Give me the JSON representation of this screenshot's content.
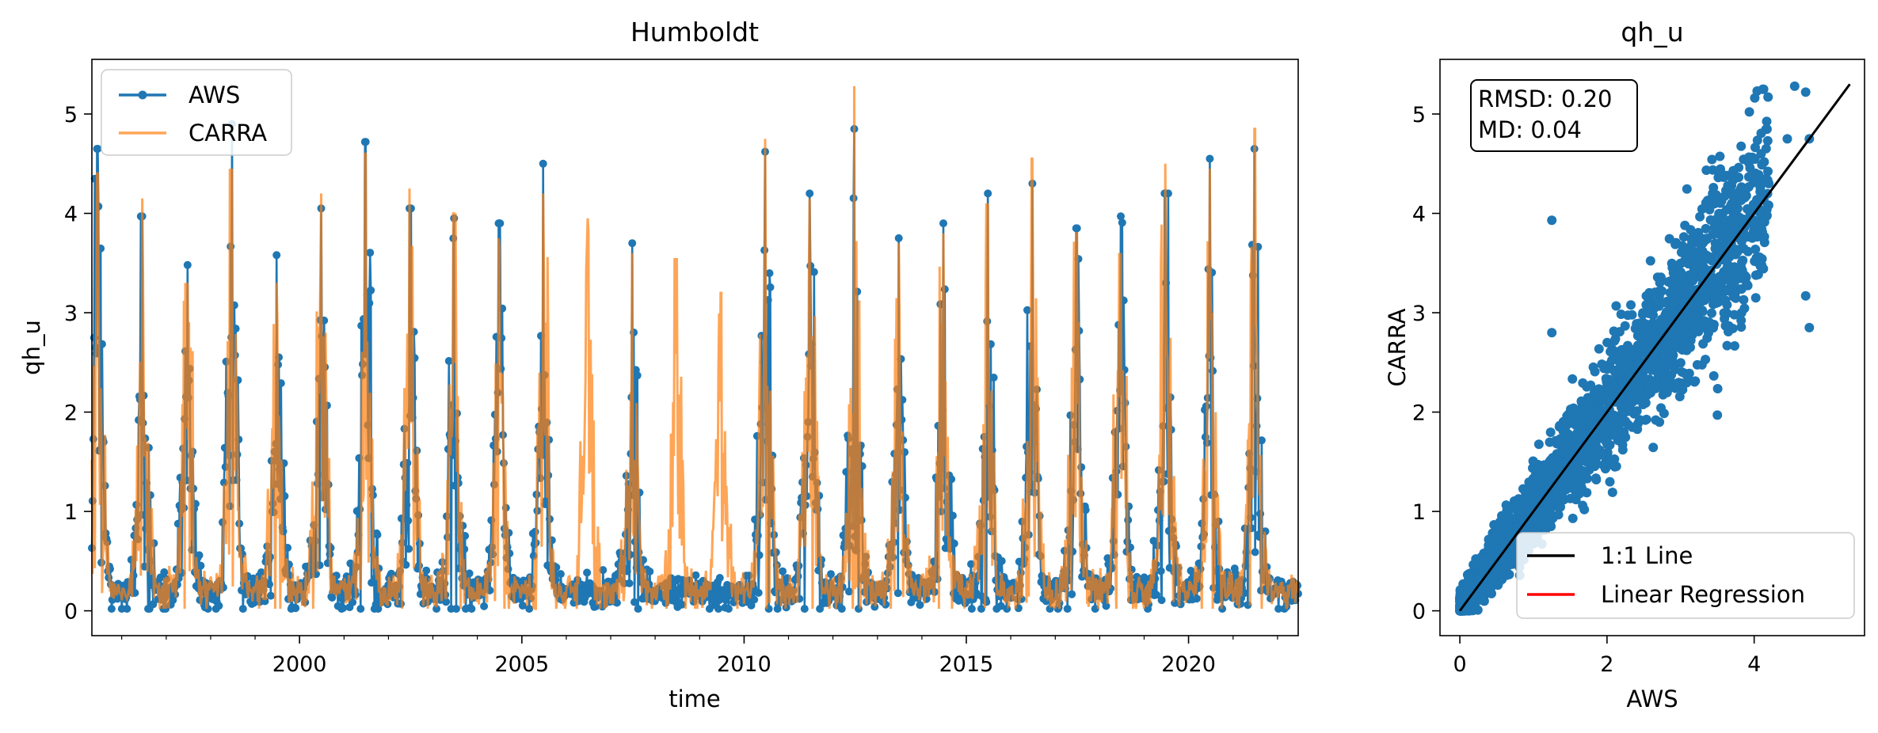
{
  "colors": {
    "aws": "#1f77b4",
    "carra": "#ff7f0e",
    "one_to_one": "#000000",
    "regression": "#ff0000"
  },
  "chart_data": [
    {
      "type": "line",
      "title": "Humboldt",
      "xlabel": "time",
      "ylabel": "qh_u",
      "x_type": "date",
      "xlim": [
        "1995-05-01",
        "2022-06-20"
      ],
      "ylim": [
        -0.25,
        5.55
      ],
      "xticks": [
        {
          "value": "2000-01-01",
          "label": "2000"
        },
        {
          "value": "2005-01-01",
          "label": "2005"
        },
        {
          "value": "2010-01-01",
          "label": "2010"
        },
        {
          "value": "2015-01-01",
          "label": "2015"
        },
        {
          "value": "2020-01-01",
          "label": "2020"
        }
      ],
      "yticks": [
        0,
        1,
        2,
        3,
        4,
        5
      ],
      "grid": false,
      "legend": {
        "position": "top-left",
        "entries": [
          "AWS",
          "CARRA"
        ]
      },
      "series": [
        {
          "name": "AWS",
          "style": "line-with-markers",
          "seasonal_peaks": [
            {
              "date": "1995-06-15",
              "value": 4.65
            },
            {
              "date": "1996-06-20",
              "value": 3.97
            },
            {
              "date": "1997-06-25",
              "value": 3.48
            },
            {
              "date": "1998-06-25",
              "value": 4.9
            },
            {
              "date": "1999-06-25",
              "value": 3.58
            },
            {
              "date": "2000-06-25",
              "value": 4.05
            },
            {
              "date": "2001-06-25",
              "value": 4.72
            },
            {
              "date": "2002-06-25",
              "value": 4.05
            },
            {
              "date": "2003-06-25",
              "value": 3.95
            },
            {
              "date": "2004-06-25",
              "value": 3.9
            },
            {
              "date": "2005-06-25",
              "value": 4.5
            },
            {
              "date": "2007-06-25",
              "value": 3.7
            },
            {
              "date": "2010-06-25",
              "value": 4.62
            },
            {
              "date": "2011-06-25",
              "value": 4.2
            },
            {
              "date": "2012-06-25",
              "value": 4.85
            },
            {
              "date": "2013-06-25",
              "value": 3.75
            },
            {
              "date": "2014-06-25",
              "value": 3.9
            },
            {
              "date": "2015-06-25",
              "value": 4.2
            },
            {
              "date": "2016-06-25",
              "value": 4.3
            },
            {
              "date": "2017-06-25",
              "value": 3.85
            },
            {
              "date": "2018-06-25",
              "value": 3.97
            },
            {
              "date": "2019-06-25",
              "value": 4.2
            },
            {
              "date": "2020-06-25",
              "value": 4.55
            },
            {
              "date": "2021-06-25",
              "value": 4.65
            }
          ]
        },
        {
          "name": "CARRA",
          "style": "line",
          "seasonal_peaks": [
            {
              "date": "1995-06-15",
              "value": 4.4
            },
            {
              "date": "1996-06-20",
              "value": 4.15
            },
            {
              "date": "1997-06-25",
              "value": 3.3
            },
            {
              "date": "1998-06-25",
              "value": 4.45
            },
            {
              "date": "1999-06-25",
              "value": 3.3
            },
            {
              "date": "2000-06-25",
              "value": 4.2
            },
            {
              "date": "2001-06-25",
              "value": 4.6
            },
            {
              "date": "2002-06-25",
              "value": 4.25
            },
            {
              "date": "2003-06-25",
              "value": 4.0
            },
            {
              "date": "2004-06-25",
              "value": 3.75
            },
            {
              "date": "2005-06-25",
              "value": 4.2
            },
            {
              "date": "2006-06-25",
              "value": 3.95
            },
            {
              "date": "2007-06-25",
              "value": 3.6
            },
            {
              "date": "2008-06-25",
              "value": 3.55
            },
            {
              "date": "2009-06-25",
              "value": 3.2
            },
            {
              "date": "2010-06-25",
              "value": 4.75
            },
            {
              "date": "2011-06-25",
              "value": 4.15
            },
            {
              "date": "2012-06-25",
              "value": 5.28
            },
            {
              "date": "2013-06-25",
              "value": 3.7
            },
            {
              "date": "2014-06-25",
              "value": 3.8
            },
            {
              "date": "2015-06-25",
              "value": 4.1
            },
            {
              "date": "2016-06-25",
              "value": 4.55
            },
            {
              "date": "2017-06-25",
              "value": 3.8
            },
            {
              "date": "2018-06-25",
              "value": 3.6
            },
            {
              "date": "2019-06-25",
              "value": 4.5
            },
            {
              "date": "2020-06-25",
              "value": 4.45
            },
            {
              "date": "2021-06-25",
              "value": 4.85
            }
          ]
        }
      ]
    },
    {
      "type": "scatter",
      "title": "qh_u",
      "xlabel": "AWS",
      "ylabel": "CARRA",
      "xlim": [
        -0.27,
        5.5
      ],
      "ylim": [
        -0.25,
        5.55
      ],
      "xticks": [
        0,
        2,
        4
      ],
      "yticks": [
        0,
        1,
        2,
        3,
        4,
        5
      ],
      "grid": false,
      "annotation": {
        "lines": [
          "RMSD: 0.20",
          "MD: 0.04"
        ],
        "position": "top-left"
      },
      "legend": {
        "position": "bottom-right",
        "entries": [
          "1:1 Line",
          "Linear Regression"
        ]
      },
      "one_to_one_line": {
        "from": [
          0,
          0
        ],
        "to": [
          5.3,
          5.3
        ]
      },
      "outliers": [
        {
          "x": 1.25,
          "y": 3.93
        },
        {
          "x": 1.25,
          "y": 2.8
        },
        {
          "x": 3.1,
          "y": 2.35
        },
        {
          "x": 3.5,
          "y": 1.97
        },
        {
          "x": 4.7,
          "y": 3.17
        },
        {
          "x": 4.75,
          "y": 2.85
        },
        {
          "x": 4.55,
          "y": 5.28
        },
        {
          "x": 4.7,
          "y": 5.22
        },
        {
          "x": 4.75,
          "y": 4.75
        },
        {
          "x": 4.45,
          "y": 4.75
        },
        {
          "x": 4.2,
          "y": 4.3
        }
      ]
    }
  ]
}
